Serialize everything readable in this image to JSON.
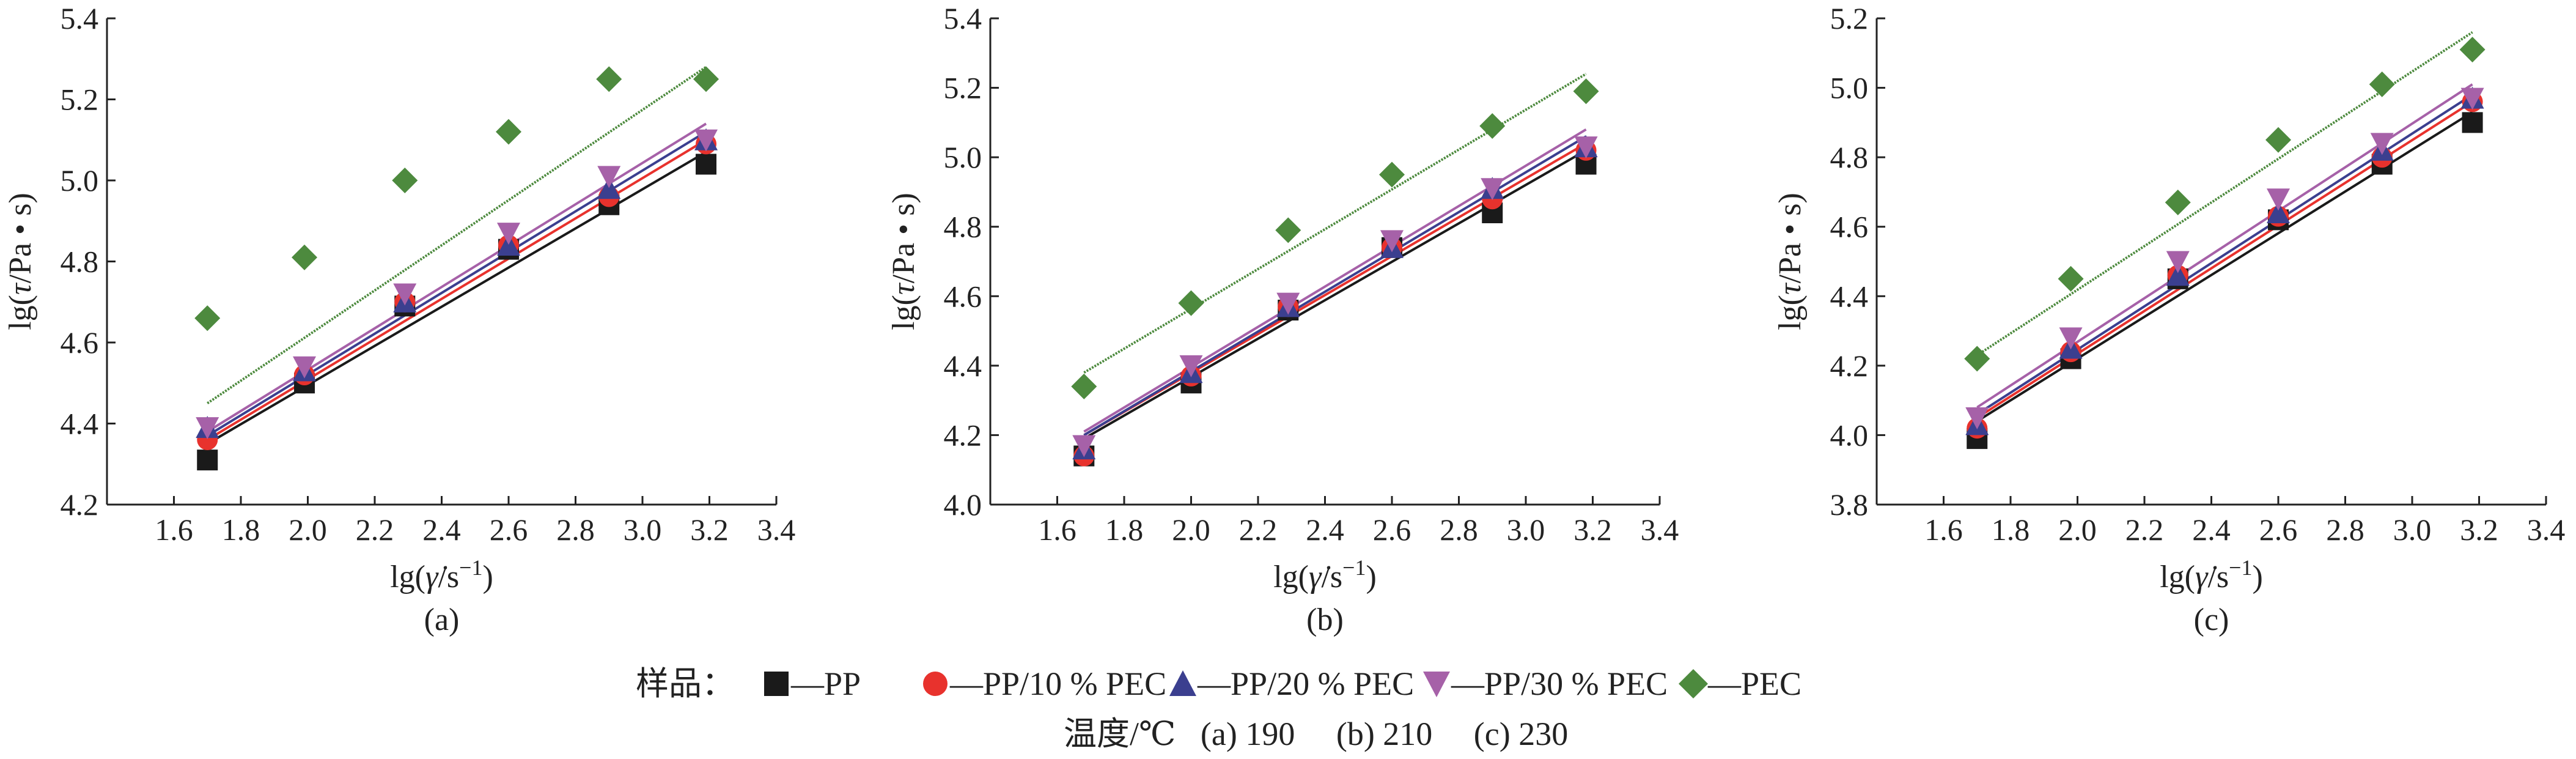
{
  "chart_data": [
    {
      "type": "scatter",
      "panel": "(a)",
      "xlabel": "lg(γ̇/s⁻¹)",
      "ylabel": "lg(τ/Pa·s)",
      "xlim": [
        1.4,
        3.4
      ],
      "ylim": [
        4.2,
        5.4
      ],
      "xticks": [
        "1.6",
        "1.8",
        "2.0",
        "2.2",
        "2.4",
        "2.6",
        "2.8",
        "3.0",
        "3.2",
        "3.4"
      ],
      "yticks": [
        "4.2",
        "4.4",
        "4.6",
        "4.8",
        "5.0",
        "5.2",
        "5.4"
      ],
      "x": [
        1.7,
        1.99,
        2.29,
        2.6,
        2.9,
        3.19
      ],
      "series": [
        {
          "name": "PP",
          "values": [
            4.31,
            4.5,
            4.69,
            4.83,
            4.94,
            5.04
          ],
          "fit": [
            4.35,
            5.07
          ]
        },
        {
          "name": "PP/10 % PEC",
          "values": [
            4.36,
            4.52,
            4.7,
            4.84,
            4.96,
            5.09
          ],
          "fit": [
            4.36,
            5.1
          ]
        },
        {
          "name": "PP/20 % PEC",
          "values": [
            4.39,
            4.53,
            4.7,
            4.84,
            4.98,
            5.1
          ],
          "fit": [
            4.37,
            5.12
          ]
        },
        {
          "name": "PP/30 % PEC",
          "values": [
            4.39,
            4.54,
            4.72,
            4.87,
            5.01,
            5.1
          ],
          "fit": [
            4.38,
            5.14
          ]
        },
        {
          "name": "PEC",
          "values": [
            4.66,
            4.81,
            5.0,
            5.12,
            5.25,
            5.25
          ],
          "fit": [
            4.45,
            5.28
          ]
        }
      ]
    },
    {
      "type": "scatter",
      "panel": "(b)",
      "xlabel": "lg(γ̇/s⁻¹)",
      "ylabel": "lg(τ/Pa·s)",
      "xlim": [
        1.4,
        3.4
      ],
      "ylim": [
        4.0,
        5.4
      ],
      "xticks": [
        "1.6",
        "1.8",
        "2.0",
        "2.2",
        "2.4",
        "2.6",
        "2.8",
        "3.0",
        "3.2",
        "3.4"
      ],
      "yticks": [
        "4.0",
        "4.2",
        "4.4",
        "4.6",
        "4.8",
        "5.0",
        "5.2",
        "5.4"
      ],
      "x": [
        1.68,
        2.0,
        2.29,
        2.6,
        2.9,
        3.18
      ],
      "series": [
        {
          "name": "PP",
          "values": [
            4.14,
            4.35,
            4.56,
            4.74,
            4.84,
            4.98
          ],
          "fit": [
            4.19,
            5.02
          ]
        },
        {
          "name": "PP/10 % PEC",
          "values": [
            4.14,
            4.37,
            4.57,
            4.74,
            4.88,
            5.02
          ],
          "fit": [
            4.2,
            5.04
          ]
        },
        {
          "name": "PP/20 % PEC",
          "values": [
            4.16,
            4.38,
            4.57,
            4.74,
            4.91,
            5.03
          ],
          "fit": [
            4.2,
            5.06
          ]
        },
        {
          "name": "PP/30 % PEC",
          "values": [
            4.17,
            4.4,
            4.58,
            4.76,
            4.91,
            5.03
          ],
          "fit": [
            4.21,
            5.08
          ]
        },
        {
          "name": "PEC",
          "values": [
            4.34,
            4.58,
            4.79,
            4.95,
            5.09,
            5.19
          ],
          "fit": [
            4.38,
            5.24
          ]
        }
      ]
    },
    {
      "type": "scatter",
      "panel": "(c)",
      "xlabel": "lg(γ̇/s⁻¹)",
      "ylabel": "lg(τ/Pa·s)",
      "xlim": [
        1.4,
        3.4
      ],
      "ylim": [
        3.8,
        5.2
      ],
      "xticks": [
        "1.6",
        "1.8",
        "2.0",
        "2.2",
        "2.4",
        "2.6",
        "2.8",
        "3.0",
        "3.2",
        "3.4"
      ],
      "yticks": [
        "3.8",
        "4.0",
        "4.2",
        "4.4",
        "4.6",
        "4.8",
        "5.0",
        "5.2"
      ],
      "x": [
        1.7,
        1.98,
        2.3,
        2.6,
        2.91,
        3.18
      ],
      "series": [
        {
          "name": "PP",
          "values": [
            3.99,
            4.22,
            4.45,
            4.62,
            4.78,
            4.9
          ],
          "fit": [
            4.04,
            4.93
          ]
        },
        {
          "name": "PP/10 % PEC",
          "values": [
            4.02,
            4.24,
            4.46,
            4.63,
            4.8,
            4.96
          ],
          "fit": [
            4.05,
            4.96
          ]
        },
        {
          "name": "PP/20 % PEC",
          "values": [
            4.03,
            4.25,
            4.46,
            4.64,
            4.82,
            4.97
          ],
          "fit": [
            4.06,
            4.98
          ]
        },
        {
          "name": "PP/30 % PEC",
          "values": [
            4.05,
            4.28,
            4.5,
            4.68,
            4.84,
            4.97
          ],
          "fit": [
            4.08,
            5.01
          ]
        },
        {
          "name": "PEC",
          "values": [
            4.22,
            4.45,
            4.67,
            4.85,
            5.01,
            5.11
          ],
          "fit": [
            4.23,
            5.16
          ]
        }
      ]
    }
  ],
  "x_label_prefix": "lg(",
  "x_label_symbol": "γ̇",
  "x_label_suffix": "/s",
  "x_label_sup": "−1",
  "x_label_close": ")",
  "y_label_prefix": "lg(",
  "y_label_symbol": "τ",
  "y_label_suffix": "/Pa • s)",
  "legend": {
    "title": "样品：",
    "items": [
      {
        "label": "—PP",
        "marker": "square",
        "color": "#1a1a1a"
      },
      {
        "label": "—PP/10 % PEC",
        "marker": "circle",
        "color": "#e8322d"
      },
      {
        "label": "—PP/20 % PEC",
        "marker": "triangle",
        "color": "#3b3f8f"
      },
      {
        "label": "—PP/30 % PEC",
        "marker": "triangle-down",
        "color": "#a661a8"
      },
      {
        "label": "—PEC",
        "marker": "diamond",
        "color": "#4d8a3e"
      }
    ]
  },
  "temperature_note": "温度/℃   (a) 190     (b) 210     (c) 230"
}
